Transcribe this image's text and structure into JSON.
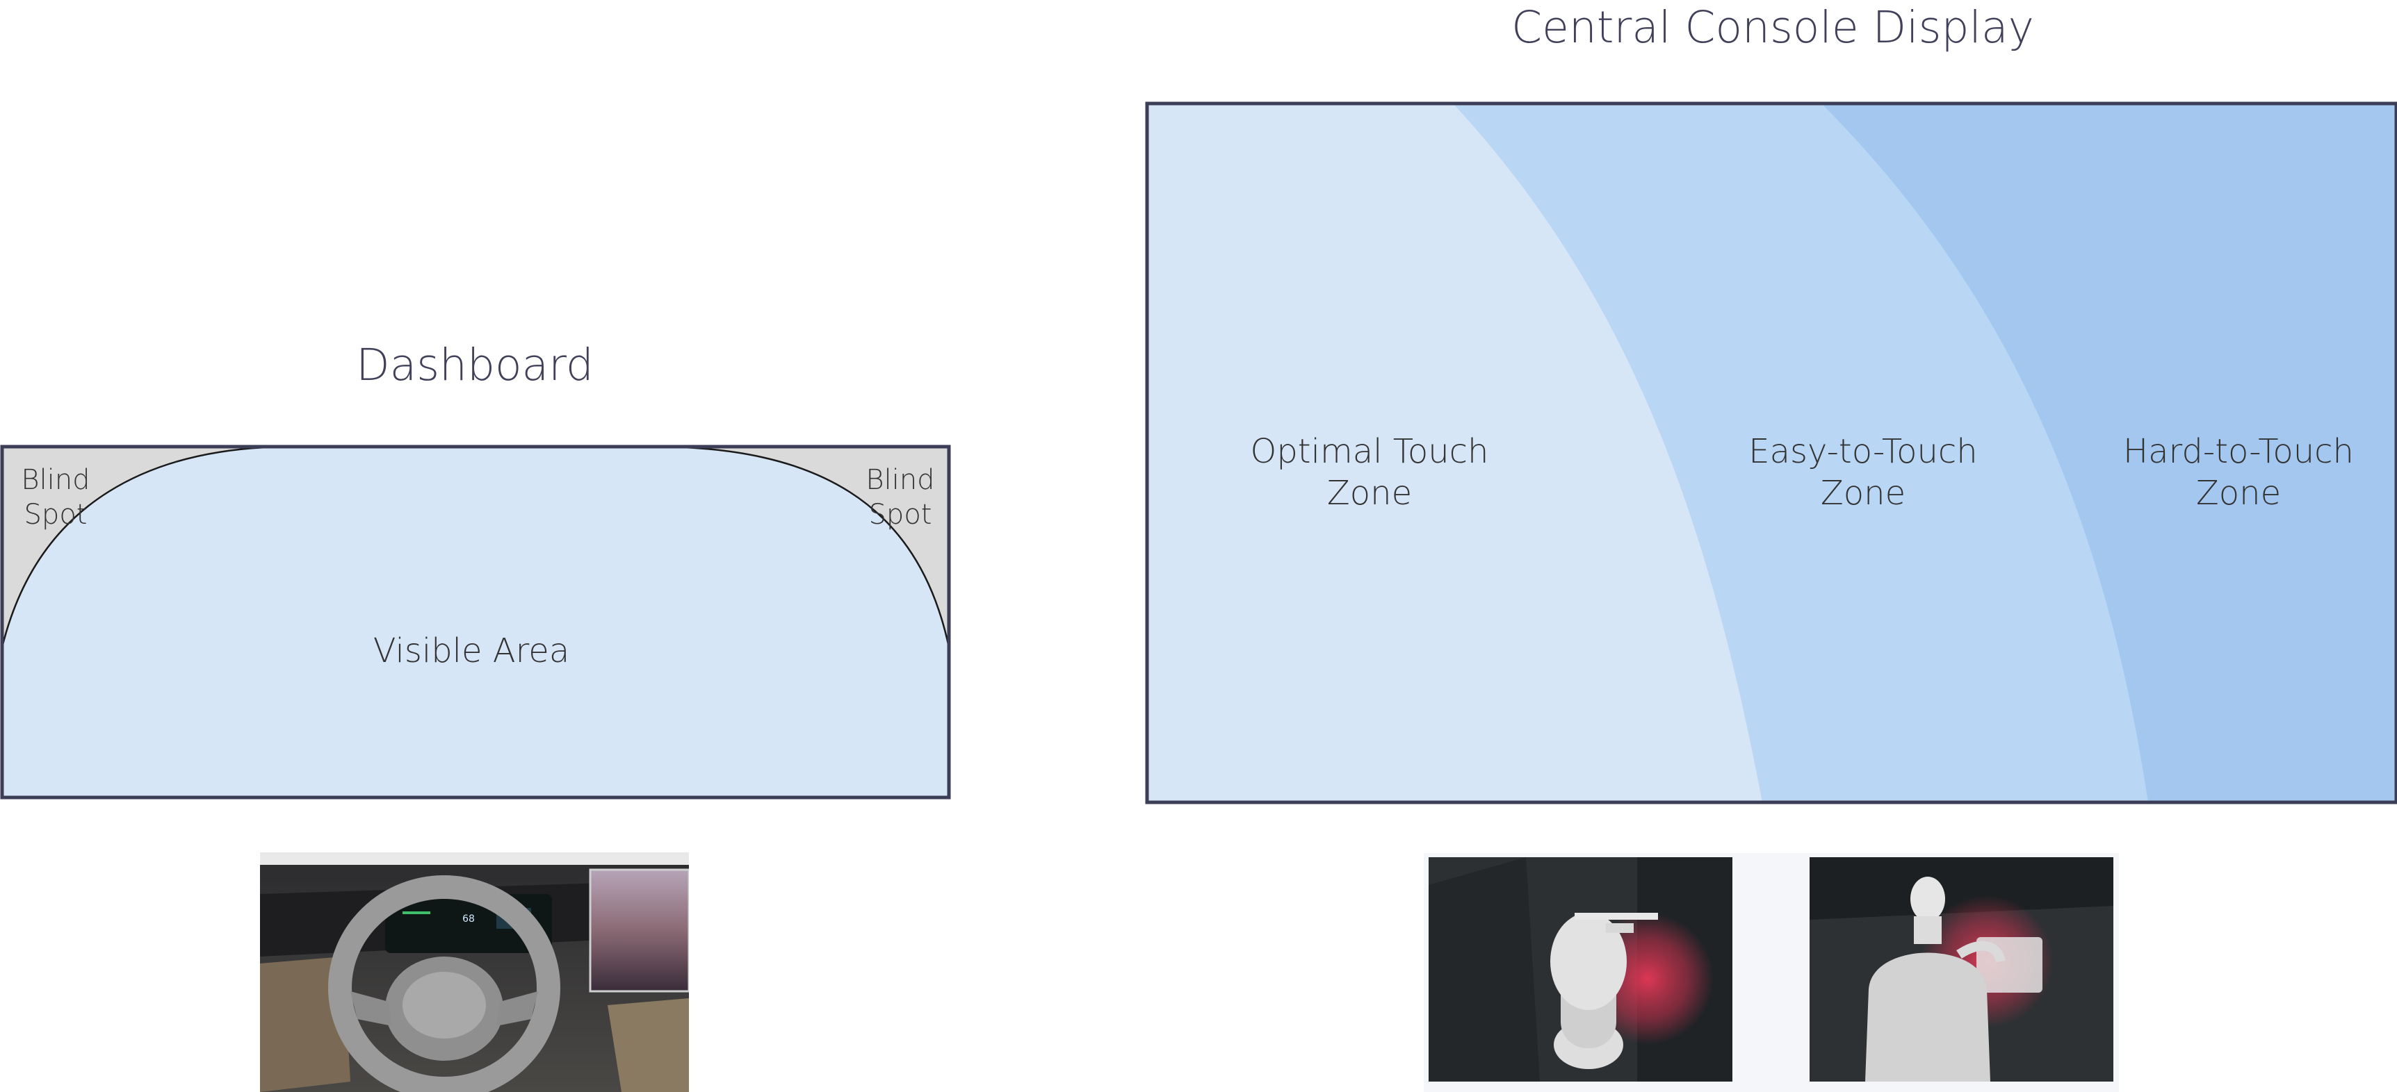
{
  "dashboard": {
    "title": "Dashboard",
    "blind_spot_left": "Blind\nSpot",
    "blind_spot_right": "Blind\nSpot",
    "visible_area": "Visible Area",
    "photo": "steering-wheel-interior-photo"
  },
  "console": {
    "title": "Central Console Display",
    "zones": [
      {
        "label": "Optimal Touch\nZone",
        "color": "#d6e6f6"
      },
      {
        "label": "Easy-to-Touch\nZone",
        "color": "#b9d7f4"
      },
      {
        "label": "Hard-to-Touch\nZone",
        "color": "#a3c7ef"
      }
    ],
    "photos": [
      "driver-reach-top-view-photo",
      "driver-reach-rear-view-photo"
    ]
  },
  "colors": {
    "visible": "#d6e6f6",
    "blind": "#dadada",
    "frame": "#3c3d56"
  }
}
